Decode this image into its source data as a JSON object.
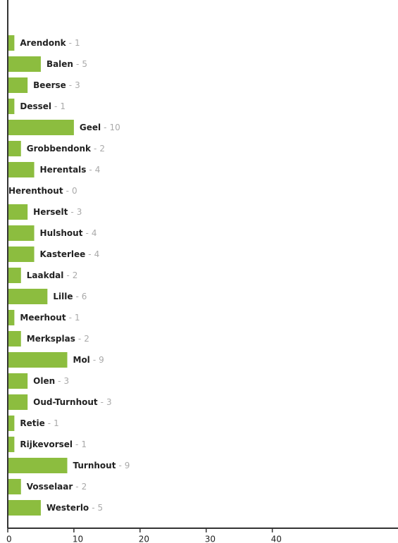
{
  "chart_data": {
    "type": "bar",
    "orientation": "horizontal",
    "categories": [
      "Arendonk",
      "Balen",
      "Beerse",
      "Dessel",
      "Geel",
      "Grobbendonk",
      "Herentals",
      "Herenthout",
      "Herselt",
      "Hulshout",
      "Kasterlee",
      "Laakdal",
      "Lille",
      "Meerhout",
      "Merksplas",
      "Mol",
      "Olen",
      "Oud-Turnhout",
      "Retie",
      "Rijkevorsel",
      "Turnhout",
      "Vosselaar",
      "Westerlo"
    ],
    "values": [
      1,
      5,
      3,
      1,
      10,
      2,
      4,
      0,
      3,
      4,
      4,
      2,
      6,
      1,
      2,
      9,
      3,
      3,
      1,
      1,
      9,
      2,
      5
    ],
    "label_separator": "-",
    "color": "#8cbd3f",
    "xlim": [
      0,
      59
    ],
    "xticks": [
      0,
      10,
      20,
      30,
      40
    ]
  }
}
